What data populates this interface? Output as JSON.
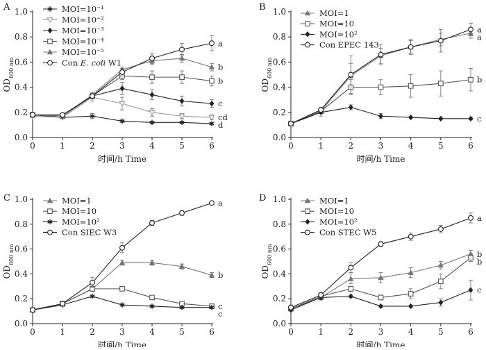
{
  "figure": {
    "description_hidden": false
  },
  "chart_data": [
    {
      "panel": "A",
      "type": "line",
      "title": "",
      "xlabel_zh": "时间/h",
      "xlabel_en": "Time",
      "ylabel_main": "OD",
      "ylabel_sub": "600 nm",
      "xlim": [
        0,
        6
      ],
      "ylim": [
        0,
        1.0
      ],
      "x_ticks": [
        "0",
        "1",
        "2",
        "3",
        "4",
        "5",
        "6"
      ],
      "y_ticks": [
        "0.0",
        "0.2",
        "0.4",
        "0.6",
        "0.8",
        "1.0"
      ],
      "x": [
        0,
        1,
        2,
        3,
        4,
        5,
        6
      ],
      "series": [
        {
          "name": "MOI=10⁻¹",
          "marker": "asterisk",
          "fill": "#222222",
          "stroke": "#222222",
          "values": [
            0.18,
            0.16,
            0.17,
            0.13,
            0.12,
            0.12,
            0.11
          ],
          "err": [
            0.01,
            0.01,
            0.02,
            0.01,
            0.01,
            0.01,
            0.01
          ],
          "sig": "d"
        },
        {
          "name": "MOI=10⁻²",
          "marker": "triangle-down-open",
          "fill": "#ffffff",
          "stroke": "#999999",
          "values": [
            0.17,
            0.16,
            0.32,
            0.27,
            0.2,
            0.17,
            0.16
          ],
          "err": [
            0.01,
            0.01,
            0.03,
            0.05,
            0.03,
            0.02,
            0.02
          ],
          "sig": "cd"
        },
        {
          "name": "MOI=10⁻³",
          "marker": "diamond",
          "fill": "#222222",
          "stroke": "#222222",
          "values": [
            0.18,
            0.17,
            0.33,
            0.39,
            0.34,
            0.29,
            0.27
          ],
          "err": [
            0.01,
            0.01,
            0.02,
            0.05,
            0.04,
            0.04,
            0.03
          ],
          "sig": "c"
        },
        {
          "name": "MOI=10⁻⁴",
          "marker": "square-open",
          "fill": "#ffffff",
          "stroke": "#555555",
          "values": [
            0.18,
            0.17,
            0.33,
            0.49,
            0.48,
            0.48,
            0.45
          ],
          "err": [
            0.01,
            0.01,
            0.02,
            0.03,
            0.05,
            0.05,
            0.04
          ],
          "sig": "b"
        },
        {
          "name": "MOI=10⁻⁵",
          "marker": "triangle-up",
          "fill": "#777777",
          "stroke": "#777777",
          "values": [
            0.18,
            0.17,
            0.34,
            0.54,
            0.61,
            0.63,
            0.56
          ],
          "err": [
            0.01,
            0.01,
            0.02,
            0.02,
            0.03,
            0.03,
            0.03
          ],
          "sig": "b"
        },
        {
          "name_prefix": "Con ",
          "name_italic": "E. coli",
          "name_suffix": " W1",
          "name": "Con E. coli W1",
          "marker": "circle-open",
          "fill": "#ffffff",
          "stroke": "#222222",
          "values": [
            0.18,
            0.18,
            0.33,
            0.52,
            0.63,
            0.7,
            0.75
          ],
          "err": [
            0.01,
            0.01,
            0.02,
            0.03,
            0.04,
            0.05,
            0.06
          ],
          "sig": "a"
        }
      ]
    },
    {
      "panel": "B",
      "type": "line",
      "title": "",
      "xlabel_zh": "时间/h",
      "xlabel_en": "Time",
      "ylabel_main": "OD",
      "ylabel_sub": "600 nm",
      "xlim": [
        0,
        6
      ],
      "ylim": [
        0,
        1.0
      ],
      "x_ticks": [
        "0",
        "1",
        "2",
        "3",
        "4",
        "5",
        "6"
      ],
      "y_ticks": [
        "0.0",
        "0.2",
        "0.4",
        "0.6",
        "0.8",
        "1.0"
      ],
      "x": [
        0,
        1,
        2,
        3,
        4,
        5,
        6
      ],
      "series": [
        {
          "name": "MOI=1",
          "marker": "triangle-up",
          "fill": "#777777",
          "stroke": "#777777",
          "values": [
            0.11,
            0.21,
            0.49,
            0.65,
            0.72,
            0.78,
            0.83
          ],
          "err": [
            0.01,
            0.02,
            0.1,
            0.06,
            0.05,
            0.05,
            0.04
          ],
          "sig": "a"
        },
        {
          "name": "MOI=10",
          "marker": "square-open",
          "fill": "#ffffff",
          "stroke": "#555555",
          "values": [
            0.11,
            0.21,
            0.4,
            0.4,
            0.41,
            0.43,
            0.46
          ],
          "err": [
            0.01,
            0.02,
            0.06,
            0.06,
            0.09,
            0.1,
            0.09
          ],
          "sig": "b"
        },
        {
          "name": "MOI=10²",
          "marker": "diamond",
          "fill": "#222222",
          "stroke": "#222222",
          "values": [
            0.11,
            0.2,
            0.24,
            0.17,
            0.16,
            0.15,
            0.15
          ],
          "err": [
            0.01,
            0.03,
            0.02,
            0.02,
            0.01,
            0.01,
            0.01
          ],
          "sig": "c"
        },
        {
          "name": "Con EPEC 143",
          "marker": "circle-open",
          "fill": "#ffffff",
          "stroke": "#222222",
          "values": [
            0.11,
            0.22,
            0.5,
            0.66,
            0.72,
            0.77,
            0.86
          ],
          "err": [
            0.01,
            0.02,
            0.15,
            0.08,
            0.06,
            0.09,
            0.05
          ],
          "sig": "a"
        }
      ]
    },
    {
      "panel": "C",
      "type": "line",
      "title": "",
      "xlabel_zh": "时间/h",
      "xlabel_en": "Time",
      "ylabel_main": "OD",
      "ylabel_sub": "600 nm",
      "xlim": [
        0,
        6
      ],
      "ylim": [
        0,
        1.0
      ],
      "x_ticks": [
        "0",
        "1",
        "2",
        "3",
        "4",
        "5",
        "6"
      ],
      "y_ticks": [
        "0.0",
        "0.2",
        "0.4",
        "0.6",
        "0.8",
        "1.0"
      ],
      "x": [
        0,
        1,
        2,
        3,
        4,
        5,
        6
      ],
      "series": [
        {
          "name": "MOI=1",
          "marker": "triangle-up",
          "fill": "#777777",
          "stroke": "#777777",
          "values": [
            0.11,
            0.16,
            0.28,
            0.49,
            0.49,
            0.46,
            0.39
          ],
          "err": [
            0.01,
            0.01,
            0.02,
            0.02,
            0.02,
            0.02,
            0.02
          ],
          "sig": "b"
        },
        {
          "name": "MOI=10",
          "marker": "square-open",
          "fill": "#ffffff",
          "stroke": "#555555",
          "values": [
            0.11,
            0.16,
            0.28,
            0.28,
            0.21,
            0.16,
            0.14
          ],
          "err": [
            0.01,
            0.01,
            0.02,
            0.01,
            0.01,
            0.01,
            0.01
          ],
          "sig": "c"
        },
        {
          "name": "MOI=10²",
          "marker": "asterisk",
          "fill": "#222222",
          "stroke": "#222222",
          "values": [
            0.11,
            0.15,
            0.22,
            0.15,
            0.14,
            0.13,
            0.13
          ],
          "err": [
            0.01,
            0.01,
            0.01,
            0.01,
            0.01,
            0.01,
            0.01
          ],
          "sig": "c"
        },
        {
          "name": "Con SIEC W3",
          "marker": "circle-open",
          "fill": "#ffffff",
          "stroke": "#222222",
          "values": [
            0.11,
            0.16,
            0.33,
            0.61,
            0.81,
            0.89,
            0.97
          ],
          "err": [
            0.01,
            0.01,
            0.04,
            0.04,
            0.02,
            0.02,
            0.01
          ],
          "sig": "a"
        }
      ]
    },
    {
      "panel": "D",
      "type": "line",
      "title": "",
      "xlabel_zh": "时间/h",
      "xlabel_en": "Time",
      "ylabel_main": "OD",
      "ylabel_sub": "600 nm",
      "xlim": [
        0,
        6
      ],
      "ylim": [
        0,
        1.0
      ],
      "x_ticks": [
        "0",
        "1",
        "2",
        "3",
        "4",
        "5",
        "6"
      ],
      "y_ticks": [
        "0.0",
        "0.2",
        "0.4",
        "0.6",
        "0.8",
        "1.0"
      ],
      "x": [
        0,
        1,
        2,
        3,
        4,
        5,
        6
      ],
      "series": [
        {
          "name": "MOI=1",
          "marker": "triangle-up",
          "fill": "#777777",
          "stroke": "#777777",
          "values": [
            0.12,
            0.21,
            0.36,
            0.37,
            0.41,
            0.47,
            0.56
          ],
          "err": [
            0.02,
            0.02,
            0.04,
            0.04,
            0.04,
            0.03,
            0.03
          ],
          "sig": "b"
        },
        {
          "name": "MOI=10",
          "marker": "square-open",
          "fill": "#ffffff",
          "stroke": "#555555",
          "values": [
            0.12,
            0.22,
            0.28,
            0.21,
            0.24,
            0.34,
            0.53
          ],
          "err": [
            0.02,
            0.02,
            0.02,
            0.02,
            0.04,
            0.06,
            0.03
          ],
          "sig": "b"
        },
        {
          "name": "MOI=10²",
          "marker": "diamond",
          "fill": "#222222",
          "stroke": "#222222",
          "values": [
            0.11,
            0.21,
            0.22,
            0.14,
            0.14,
            0.17,
            0.27
          ],
          "err": [
            0.01,
            0.02,
            0.01,
            0.01,
            0.01,
            0.03,
            0.08
          ],
          "sig": "c"
        },
        {
          "name": "Con STEC W5",
          "marker": "circle-open",
          "fill": "#ffffff",
          "stroke": "#222222",
          "values": [
            0.13,
            0.23,
            0.45,
            0.64,
            0.7,
            0.76,
            0.85
          ],
          "err": [
            0.02,
            0.02,
            0.04,
            0.02,
            0.03,
            0.03,
            0.04
          ],
          "sig": "a"
        }
      ]
    }
  ]
}
